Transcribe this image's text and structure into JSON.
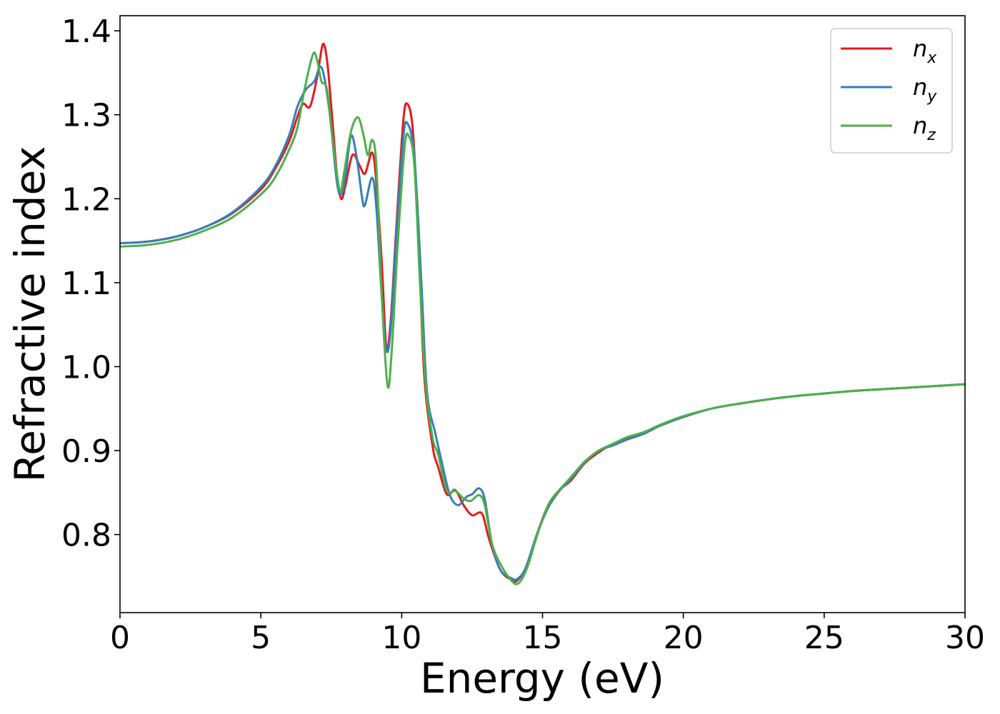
{
  "chart_data": {
    "type": "line",
    "xlabel": "Energy (eV)",
    "ylabel": "Refractive index",
    "xlim": [
      0,
      30
    ],
    "ylim": [
      0.707,
      1.418
    ],
    "x_ticks": [
      0,
      5,
      10,
      15,
      20,
      25,
      30
    ],
    "y_ticks": [
      0.8,
      0.9,
      1.0,
      1.1,
      1.2,
      1.3,
      1.4
    ],
    "x_tick_labels": [
      "0",
      "5",
      "10",
      "15",
      "20",
      "25",
      "30"
    ],
    "y_tick_labels": [
      "0.8",
      "0.9",
      "1.0",
      "1.1",
      "1.2",
      "1.3",
      "1.4"
    ],
    "grid": false,
    "legend_position": "top-right",
    "series": [
      {
        "name": "n_x",
        "legend_base": "n",
        "legend_sub": "x",
        "color": "#e41a1c",
        "points": [
          [
            0,
            1.147
          ],
          [
            1,
            1.149
          ],
          [
            2,
            1.155
          ],
          [
            3,
            1.166
          ],
          [
            4,
            1.183
          ],
          [
            5,
            1.211
          ],
          [
            5.5,
            1.235
          ],
          [
            6,
            1.268
          ],
          [
            6.3,
            1.298
          ],
          [
            6.5,
            1.313
          ],
          [
            6.75,
            1.31
          ],
          [
            7,
            1.345
          ],
          [
            7.2,
            1.384
          ],
          [
            7.35,
            1.365
          ],
          [
            7.5,
            1.31
          ],
          [
            7.7,
            1.23
          ],
          [
            7.85,
            1.2
          ],
          [
            8.0,
            1.215
          ],
          [
            8.25,
            1.252
          ],
          [
            8.5,
            1.24
          ],
          [
            8.7,
            1.23
          ],
          [
            8.95,
            1.255
          ],
          [
            9.1,
            1.22
          ],
          [
            9.3,
            1.12
          ],
          [
            9.45,
            1.025
          ],
          [
            9.6,
            1.05
          ],
          [
            9.8,
            1.16
          ],
          [
            10.05,
            1.29
          ],
          [
            10.2,
            1.313
          ],
          [
            10.4,
            1.28
          ],
          [
            10.6,
            1.15
          ],
          [
            10.8,
            0.99
          ],
          [
            11.1,
            0.905
          ],
          [
            11.3,
            0.88
          ],
          [
            11.6,
            0.848
          ],
          [
            11.9,
            0.853
          ],
          [
            12.2,
            0.835
          ],
          [
            12.5,
            0.823
          ],
          [
            12.85,
            0.825
          ],
          [
            13.1,
            0.795
          ],
          [
            13.5,
            0.758
          ],
          [
            13.9,
            0.746
          ],
          [
            14.1,
            0.745
          ],
          [
            14.4,
            0.76
          ],
          [
            14.8,
            0.8
          ],
          [
            15.2,
            0.835
          ],
          [
            15.6,
            0.853
          ],
          [
            16,
            0.864
          ],
          [
            16.5,
            0.885
          ],
          [
            17,
            0.898
          ],
          [
            17.5,
            0.908
          ],
          [
            18,
            0.914
          ],
          [
            18.6,
            0.922
          ],
          [
            19.2,
            0.93
          ],
          [
            20,
            0.94
          ],
          [
            21,
            0.95
          ],
          [
            22,
            0.956
          ],
          [
            23,
            0.961
          ],
          [
            24,
            0.965
          ],
          [
            25,
            0.968
          ],
          [
            26,
            0.971
          ],
          [
            27,
            0.973
          ],
          [
            28,
            0.975
          ],
          [
            29,
            0.977
          ],
          [
            30,
            0.979
          ]
        ]
      },
      {
        "name": "n_y",
        "legend_base": "n",
        "legend_sub": "y",
        "color": "#377eb8",
        "points": [
          [
            0,
            1.147
          ],
          [
            1,
            1.149
          ],
          [
            2,
            1.155
          ],
          [
            3,
            1.166
          ],
          [
            4,
            1.184
          ],
          [
            5,
            1.214
          ],
          [
            5.5,
            1.238
          ],
          [
            6,
            1.275
          ],
          [
            6.3,
            1.31
          ],
          [
            6.6,
            1.33
          ],
          [
            6.9,
            1.34
          ],
          [
            7.1,
            1.357
          ],
          [
            7.25,
            1.345
          ],
          [
            7.45,
            1.3
          ],
          [
            7.7,
            1.22
          ],
          [
            7.85,
            1.205
          ],
          [
            8.0,
            1.225
          ],
          [
            8.2,
            1.275
          ],
          [
            8.4,
            1.25
          ],
          [
            8.6,
            1.2
          ],
          [
            8.7,
            1.193
          ],
          [
            8.95,
            1.225
          ],
          [
            9.1,
            1.19
          ],
          [
            9.3,
            1.08
          ],
          [
            9.45,
            1.02
          ],
          [
            9.6,
            1.04
          ],
          [
            9.8,
            1.15
          ],
          [
            10.05,
            1.27
          ],
          [
            10.2,
            1.29
          ],
          [
            10.45,
            1.25
          ],
          [
            10.7,
            1.1
          ],
          [
            10.9,
            0.97
          ],
          [
            11.2,
            0.92
          ],
          [
            11.4,
            0.89
          ],
          [
            11.7,
            0.848
          ],
          [
            12.0,
            0.835
          ],
          [
            12.3,
            0.845
          ],
          [
            12.5,
            0.848
          ],
          [
            12.75,
            0.855
          ],
          [
            12.95,
            0.842
          ],
          [
            13.2,
            0.79
          ],
          [
            13.5,
            0.758
          ],
          [
            13.9,
            0.748
          ],
          [
            14.1,
            0.747
          ],
          [
            14.4,
            0.76
          ],
          [
            14.8,
            0.8
          ],
          [
            15.2,
            0.832
          ],
          [
            15.6,
            0.852
          ],
          [
            16,
            0.866
          ],
          [
            16.5,
            0.886
          ],
          [
            17,
            0.9
          ],
          [
            17.5,
            0.906
          ],
          [
            18,
            0.913
          ],
          [
            18.6,
            0.92
          ],
          [
            19.2,
            0.93
          ],
          [
            20,
            0.94
          ],
          [
            21,
            0.95
          ],
          [
            22,
            0.956
          ],
          [
            23,
            0.961
          ],
          [
            24,
            0.965
          ],
          [
            25,
            0.968
          ],
          [
            26,
            0.971
          ],
          [
            27,
            0.973
          ],
          [
            28,
            0.975
          ],
          [
            29,
            0.977
          ],
          [
            30,
            0.979
          ]
        ]
      },
      {
        "name": "n_z",
        "legend_base": "n",
        "legend_sub": "z",
        "color": "#4daf4a",
        "points": [
          [
            0,
            1.143
          ],
          [
            1,
            1.145
          ],
          [
            2,
            1.151
          ],
          [
            3,
            1.162
          ],
          [
            4,
            1.178
          ],
          [
            5,
            1.205
          ],
          [
            5.5,
            1.225
          ],
          [
            6,
            1.258
          ],
          [
            6.3,
            1.285
          ],
          [
            6.55,
            1.33
          ],
          [
            6.85,
            1.372
          ],
          [
            7.0,
            1.365
          ],
          [
            7.15,
            1.34
          ],
          [
            7.35,
            1.33
          ],
          [
            7.55,
            1.27
          ],
          [
            7.8,
            1.21
          ],
          [
            7.95,
            1.23
          ],
          [
            8.2,
            1.28
          ],
          [
            8.45,
            1.297
          ],
          [
            8.65,
            1.275
          ],
          [
            8.8,
            1.252
          ],
          [
            8.95,
            1.27
          ],
          [
            9.1,
            1.24
          ],
          [
            9.3,
            1.08
          ],
          [
            9.5,
            0.977
          ],
          [
            9.65,
            1.02
          ],
          [
            9.85,
            1.14
          ],
          [
            10.1,
            1.26
          ],
          [
            10.25,
            1.275
          ],
          [
            10.45,
            1.24
          ],
          [
            10.65,
            1.1
          ],
          [
            10.85,
            0.98
          ],
          [
            11.1,
            0.915
          ],
          [
            11.3,
            0.895
          ],
          [
            11.6,
            0.852
          ],
          [
            11.9,
            0.852
          ],
          [
            12.2,
            0.843
          ],
          [
            12.45,
            0.84
          ],
          [
            12.75,
            0.847
          ],
          [
            12.95,
            0.835
          ],
          [
            13.2,
            0.79
          ],
          [
            13.5,
            0.765
          ],
          [
            13.9,
            0.745
          ],
          [
            14.15,
            0.742
          ],
          [
            14.45,
            0.76
          ],
          [
            14.8,
            0.798
          ],
          [
            15.2,
            0.835
          ],
          [
            15.6,
            0.853
          ],
          [
            16,
            0.868
          ],
          [
            16.5,
            0.887
          ],
          [
            17,
            0.9
          ],
          [
            17.5,
            0.908
          ],
          [
            18,
            0.916
          ],
          [
            18.6,
            0.922
          ],
          [
            19.2,
            0.931
          ],
          [
            20,
            0.941
          ],
          [
            21,
            0.95
          ],
          [
            22,
            0.956
          ],
          [
            23,
            0.961
          ],
          [
            24,
            0.965
          ],
          [
            25,
            0.968
          ],
          [
            26,
            0.971
          ],
          [
            27,
            0.973
          ],
          [
            28,
            0.975
          ],
          [
            29,
            0.977
          ],
          [
            30,
            0.979
          ]
        ]
      }
    ]
  }
}
